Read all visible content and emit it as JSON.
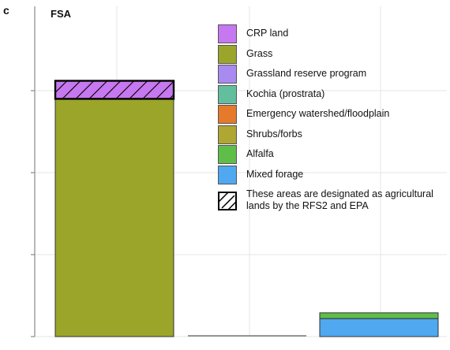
{
  "panel": {
    "letter": "c",
    "title": "FSA"
  },
  "colors": {
    "axis": "#888888",
    "grid": "#e6e6e6",
    "crp_land": "#c678f0",
    "grass": "#9aa52a",
    "grassland_reserve_program": "#a98af0",
    "kochia": "#62bf9e",
    "emergency_watershed": "#e57a2a",
    "shrubs_forbs": "#b0a632",
    "alfalfa": "#5fbe4a",
    "mixed_forage": "#4fa8f0",
    "hatch_stroke": "#000000"
  },
  "legend": {
    "items": [
      {
        "label": "CRP land",
        "color": "#c678f0"
      },
      {
        "label": "Grass",
        "color": "#9aa52a"
      },
      {
        "label": "Grassland reserve program",
        "color": "#a98af0"
      },
      {
        "label": "Kochia (prostrata)",
        "color": "#62bf9e"
      },
      {
        "label": "Emergency watershed/floodplain",
        "color": "#e57a2a"
      },
      {
        "label": "Shrubs/forbs",
        "color": "#b0a632"
      },
      {
        "label": "Alfalfa",
        "color": "#5fbe4a"
      },
      {
        "label": "Mixed forage",
        "color": "#4fa8f0"
      }
    ],
    "hatch_note": "These areas are designated as agricultural lands by the RFS2 and EPA"
  },
  "chart_data": {
    "type": "bar",
    "stacked": true,
    "title": "FSA",
    "xlabel": "",
    "ylabel": "",
    "ylim": [
      0,
      3.05
    ],
    "yticks": [
      0,
      1,
      2,
      3
    ],
    "ytick_labels": [],
    "categories": [
      "",
      "",
      ""
    ],
    "series": [
      {
        "name": "Grass",
        "color": "#9aa52a",
        "hatched": false,
        "values": [
          2.9,
          0,
          0
        ]
      },
      {
        "name": "CRP land",
        "color": "#c678f0",
        "hatched": true,
        "values": [
          0.22,
          0,
          0
        ]
      },
      {
        "name": "Mixed forage",
        "color": "#4fa8f0",
        "hatched": false,
        "values": [
          0,
          0,
          0.22
        ]
      },
      {
        "name": "Alfalfa",
        "color": "#5fbe4a",
        "hatched": false,
        "values": [
          0,
          0,
          0.07
        ]
      }
    ],
    "legend_position": "top-right",
    "grid": true
  }
}
